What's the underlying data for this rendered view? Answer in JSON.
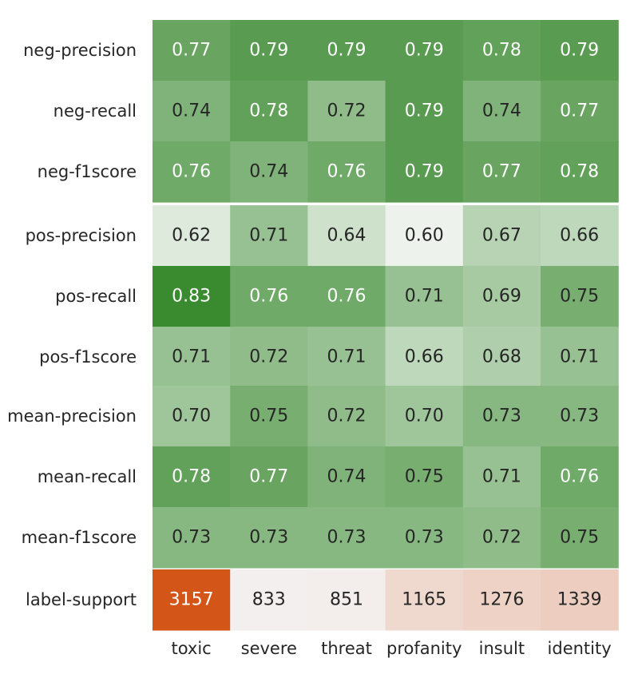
{
  "chart_data": {
    "type": "heatmap",
    "columns": [
      "toxic",
      "severe",
      "threat",
      "profanity",
      "insult",
      "identity"
    ],
    "rows": [
      "neg-precision",
      "neg-recall",
      "neg-f1score",
      "pos-precision",
      "pos-recall",
      "pos-f1score",
      "mean-precision",
      "mean-recall",
      "mean-f1score",
      "label-support"
    ],
    "values": [
      [
        0.77,
        0.79,
        0.79,
        0.79,
        0.78,
        0.79
      ],
      [
        0.74,
        0.78,
        0.72,
        0.79,
        0.74,
        0.77
      ],
      [
        0.76,
        0.74,
        0.76,
        0.79,
        0.77,
        0.78
      ],
      [
        0.62,
        0.71,
        0.64,
        0.6,
        0.67,
        0.66
      ],
      [
        0.83,
        0.76,
        0.76,
        0.71,
        0.69,
        0.75
      ],
      [
        0.71,
        0.72,
        0.71,
        0.66,
        0.68,
        0.71
      ],
      [
        0.7,
        0.75,
        0.72,
        0.7,
        0.73,
        0.73
      ],
      [
        0.78,
        0.77,
        0.74,
        0.75,
        0.71,
        0.76
      ],
      [
        0.73,
        0.73,
        0.73,
        0.73,
        0.72,
        0.75
      ],
      [
        3157,
        833,
        851,
        1165,
        1276,
        1339
      ]
    ],
    "labels": [
      [
        "0.77",
        "0.79",
        "0.79",
        "0.79",
        "0.78",
        "0.79"
      ],
      [
        "0.74",
        "0.78",
        "0.72",
        "0.79",
        "0.74",
        "0.77"
      ],
      [
        "0.76",
        "0.74",
        "0.76",
        "0.79",
        "0.77",
        "0.78"
      ],
      [
        "0.62",
        "0.71",
        "0.64",
        "0.60",
        "0.67",
        "0.66"
      ],
      [
        "0.83",
        "0.76",
        "0.76",
        "0.71",
        "0.69",
        "0.75"
      ],
      [
        "0.71",
        "0.72",
        "0.71",
        "0.66",
        "0.68",
        "0.71"
      ],
      [
        "0.70",
        "0.75",
        "0.72",
        "0.70",
        "0.73",
        "0.73"
      ],
      [
        "0.78",
        "0.77",
        "0.74",
        "0.75",
        "0.71",
        "0.76"
      ],
      [
        "0.73",
        "0.73",
        "0.73",
        "0.73",
        "0.72",
        "0.75"
      ],
      [
        "3157",
        "833",
        "851",
        "1165",
        "1276",
        "1339"
      ]
    ],
    "groups": [
      {
        "rows": [
          0,
          1,
          2
        ],
        "colormap": "green"
      },
      {
        "rows": [
          3,
          4,
          5
        ],
        "colormap": "green"
      },
      {
        "rows": [
          6,
          7,
          8
        ],
        "colormap": "green"
      },
      {
        "rows": [
          9
        ],
        "colormap": "orange"
      }
    ],
    "color_scales": {
      "green": {
        "low": "#edf3ec",
        "high": "#3a8a30",
        "vmin": 0.6,
        "vmax": 0.83
      },
      "orange": {
        "low": "#f3efee",
        "high": "#d45518",
        "vmin": 833,
        "vmax": 3157
      }
    },
    "text_colors": {
      "dark": "#262626",
      "light": "#ffffff"
    },
    "title": "",
    "xlabel": "",
    "ylabel": "",
    "legend": "none",
    "grid": false
  }
}
